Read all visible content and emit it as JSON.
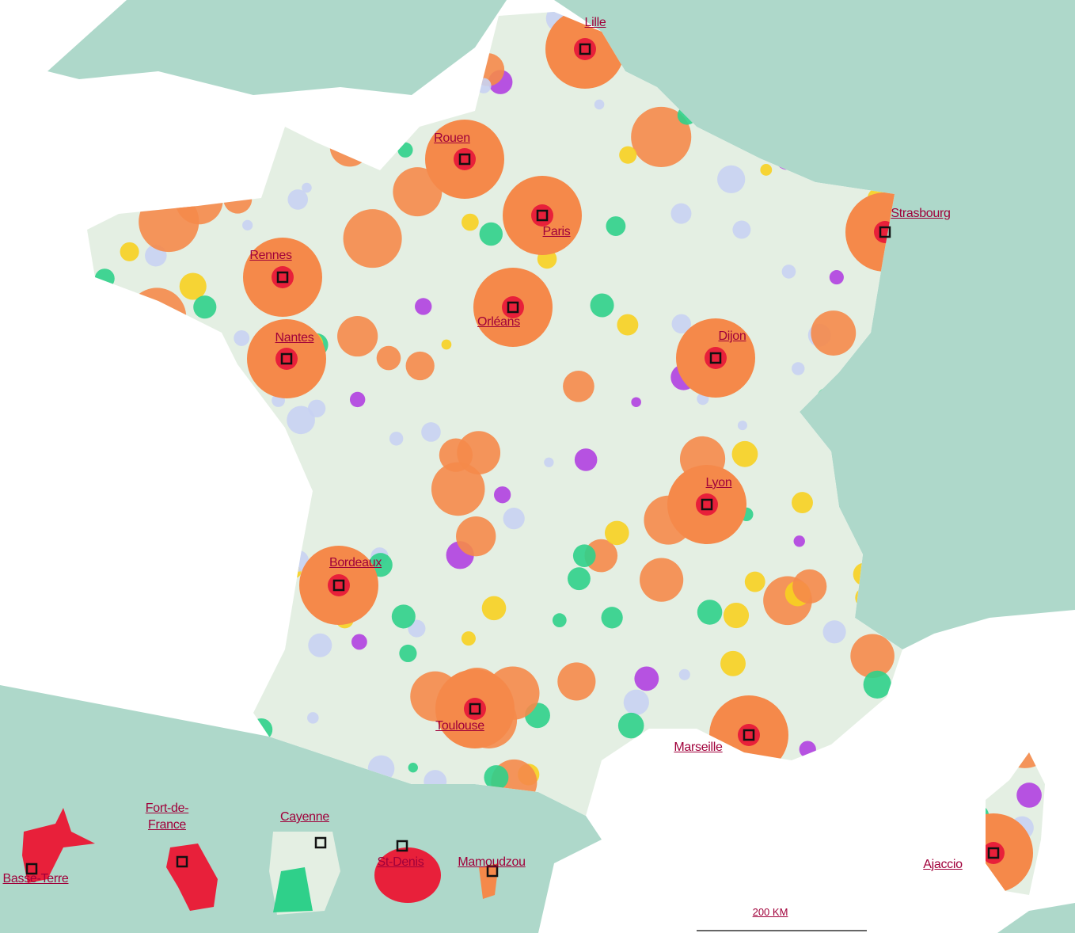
{
  "cities": [
    "Lille",
    "Rouen",
    "Paris",
    "Strasbourg",
    "Rennes",
    "Orléans",
    "Nantes",
    "Dijon",
    "Lyon",
    "Bordeaux",
    "Toulouse",
    "Marseille",
    "Ajaccio",
    "Basse-Terre",
    "Fort-de-France",
    "Cayenne",
    "St-Denis",
    "Mamoudzou"
  ],
  "scale": "200 KM"
}
